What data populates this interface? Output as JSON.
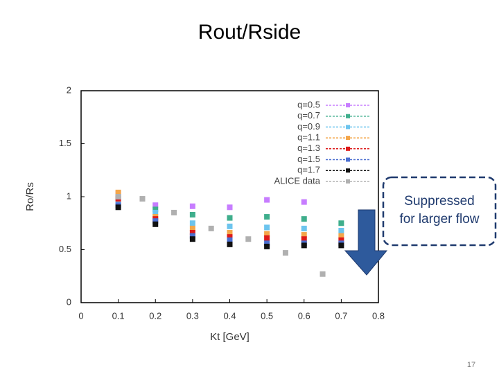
{
  "title": "Rout/Rside",
  "annotation": [
    "Suppressed",
    "for larger flow"
  ],
  "page_number": "17",
  "chart_data": {
    "type": "scatter",
    "xlabel": "Kt [GeV]",
    "ylabel": "Ro/Rs",
    "xlim": [
      0,
      0.8
    ],
    "xticks": [
      0,
      0.1,
      0.2,
      0.3,
      0.4,
      0.5,
      0.6,
      0.7,
      0.8
    ],
    "ylim": [
      0,
      2
    ],
    "yticks": [
      0,
      0.5,
      1,
      1.5,
      2
    ],
    "legend": "upper right",
    "series": [
      {
        "name": "q=0.5",
        "color": "#c77dff",
        "x": [
          0.1,
          0.2,
          0.3,
          0.4,
          0.5,
          0.6,
          0.7
        ],
        "values": [
          1.03,
          0.92,
          0.91,
          0.9,
          0.97,
          0.95,
          null
        ]
      },
      {
        "name": "q=0.7",
        "color": "#3fae8c",
        "x": [
          0.1,
          0.2,
          0.3,
          0.4,
          0.5,
          0.6,
          0.7
        ],
        "values": [
          1.0,
          0.88,
          0.83,
          0.8,
          0.81,
          0.79,
          0.75
        ]
      },
      {
        "name": "q=0.9",
        "color": "#6cc4ee",
        "x": [
          0.1,
          0.2,
          0.3,
          0.4,
          0.5,
          0.6,
          0.7
        ],
        "values": [
          0.95,
          0.85,
          0.75,
          0.72,
          0.71,
          0.7,
          0.68
        ]
      },
      {
        "name": "q=1.1",
        "color": "#f4a64a",
        "x": [
          0.1,
          0.2,
          0.3,
          0.4,
          0.5,
          0.6,
          0.7
        ],
        "values": [
          1.04,
          0.81,
          0.7,
          0.66,
          0.65,
          0.64,
          0.63
        ]
      },
      {
        "name": "q=1.3",
        "color": "#dd1a1a",
        "x": [
          0.1,
          0.2,
          0.3,
          0.4,
          0.5,
          0.6,
          0.7
        ],
        "values": [
          0.98,
          0.79,
          0.66,
          0.62,
          0.61,
          0.6,
          0.59
        ]
      },
      {
        "name": "q=1.5",
        "color": "#4a6ed0",
        "x": [
          0.1,
          0.2,
          0.3,
          0.4,
          0.5,
          0.6,
          0.7
        ],
        "values": [
          0.92,
          0.77,
          0.63,
          0.59,
          0.56,
          0.56,
          0.56
        ]
      },
      {
        "name": "q=1.7",
        "color": "#111111",
        "x": [
          0.1,
          0.2,
          0.3,
          0.4,
          0.5,
          0.6,
          0.7
        ],
        "values": [
          0.9,
          0.74,
          0.6,
          0.55,
          0.53,
          0.54,
          0.54
        ]
      },
      {
        "name": "ALICE data",
        "color": "#b0b0b0",
        "x": [
          0.1,
          0.165,
          0.25,
          0.35,
          0.45,
          0.55,
          0.65
        ],
        "values": [
          1.0,
          0.98,
          0.85,
          0.7,
          0.6,
          0.47,
          0.27
        ]
      }
    ]
  }
}
